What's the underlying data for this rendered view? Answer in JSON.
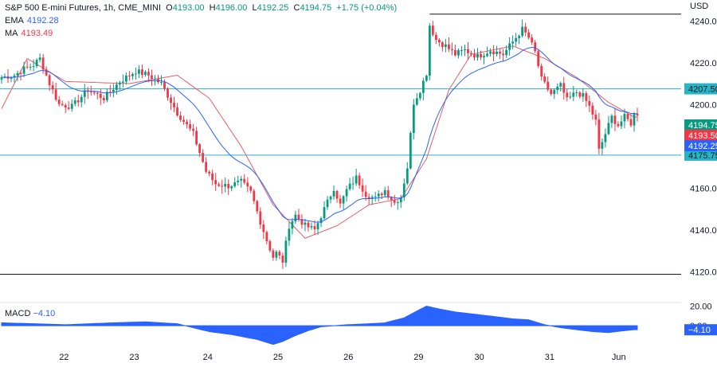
{
  "header": {
    "title": "S&P 500 E-mini Futures, 1h, CME_MINI",
    "open_label": "O",
    "open": "4193.00",
    "high_label": "H",
    "high": "4196.00",
    "low_label": "L",
    "low": "4192.25",
    "close_label": "C",
    "close": "4194.75",
    "change": "+1.75 (+0.04%)",
    "ema_label": "EMA",
    "ema_value": "4192.28",
    "ma_label": "MA",
    "ma_value": "4193.49",
    "currency": "USD"
  },
  "macd_legend": {
    "label": "MACD",
    "value": "−4.10"
  },
  "colors": {
    "up": "#089981",
    "down": "#f23645",
    "ema": "#2962ff",
    "ma": "#e0606a",
    "level_cyan": "#26b5c6",
    "level_black": "#131722",
    "macd": "#2962ff"
  },
  "chart_data": [
    {
      "type": "candlestick",
      "title": "S&P 500 E-mini Futures, 1h, CME_MINI",
      "x_tick_labels": [
        "22",
        "23",
        "24",
        "25",
        "26",
        "29",
        "30",
        "31",
        "Jun"
      ],
      "y_ticks": [
        4120,
        4140,
        4160,
        4180,
        4200,
        4220,
        4240
      ],
      "y_tick_labels": [
        "4120.00",
        "4140.00",
        "4160.00",
        "4180.00",
        "4200.00",
        "4220.00",
        "4240.00"
      ],
      "ylim": [
        4106,
        4250
      ],
      "horizontal_levels": [
        {
          "value": 4207.5,
          "label": "4207.50",
          "color": "cyan"
        },
        {
          "value": 4175.75,
          "label": "4175.75",
          "color": "cyan"
        },
        {
          "value": 4243.25,
          "label": "",
          "color": "black"
        },
        {
          "value": 4118.75,
          "label": "",
          "color": "black"
        }
      ],
      "price_tags": [
        {
          "label": "4194.75",
          "value": 4194.75,
          "color": "#089981"
        },
        {
          "label": "4193.50",
          "value": 4193.5,
          "color": "#f23645"
        },
        {
          "label": "4192.25",
          "value": 4192.25,
          "color": "#2962ff"
        }
      ],
      "close_anchors": [
        [
          0,
          4213
        ],
        [
          4,
          4214
        ],
        [
          7,
          4217
        ],
        [
          10,
          4219
        ],
        [
          12,
          4222
        ],
        [
          15,
          4210
        ],
        [
          18,
          4200
        ],
        [
          22,
          4199
        ],
        [
          27,
          4207
        ],
        [
          32,
          4203
        ],
        [
          37,
          4211
        ],
        [
          42,
          4216
        ],
        [
          46,
          4214
        ],
        [
          50,
          4210
        ],
        [
          55,
          4196
        ],
        [
          60,
          4186
        ],
        [
          64,
          4168
        ],
        [
          67,
          4162
        ],
        [
          71,
          4161
        ],
        [
          75,
          4163
        ],
        [
          78,
          4158
        ],
        [
          81,
          4144
        ],
        [
          83,
          4135
        ],
        [
          85,
          4127
        ],
        [
          86,
          4129
        ],
        [
          88,
          4125
        ],
        [
          90,
          4142
        ],
        [
          92,
          4147
        ],
        [
          95,
          4142
        ],
        [
          98,
          4140
        ],
        [
          101,
          4150
        ],
        [
          104,
          4160
        ],
        [
          106,
          4152
        ],
        [
          108,
          4159
        ],
        [
          111,
          4165
        ],
        [
          114,
          4157
        ],
        [
          117,
          4155
        ],
        [
          120,
          4159
        ],
        [
          123,
          4153
        ],
        [
          125,
          4156
        ],
        [
          127,
          4170
        ],
        [
          129,
          4201
        ],
        [
          131,
          4207
        ],
        [
          133,
          4215
        ],
        [
          134,
          4238
        ],
        [
          136,
          4231
        ],
        [
          139,
          4228
        ],
        [
          142,
          4224
        ],
        [
          145,
          4226
        ],
        [
          149,
          4223
        ],
        [
          153,
          4226
        ],
        [
          157,
          4224
        ],
        [
          160,
          4230
        ],
        [
          163,
          4236
        ],
        [
          165,
          4232
        ],
        [
          167,
          4225
        ],
        [
          169,
          4212
        ],
        [
          172,
          4205
        ],
        [
          175,
          4209
        ],
        [
          177,
          4202
        ],
        [
          180,
          4206
        ],
        [
          182,
          4204
        ],
        [
          184,
          4199
        ],
        [
          186,
          4192
        ],
        [
          187,
          4178
        ],
        [
          189,
          4186
        ],
        [
          191,
          4194
        ],
        [
          193,
          4190
        ],
        [
          195,
          4194
        ],
        [
          197,
          4191
        ],
        [
          198,
          4195
        ]
      ],
      "ma_points": [
        [
          0,
          4198
        ],
        [
          8,
          4222
        ],
        [
          20,
          4211
        ],
        [
          40,
          4210
        ],
        [
          55,
          4214
        ],
        [
          65,
          4203
        ],
        [
          75,
          4180
        ],
        [
          85,
          4152
        ],
        [
          95,
          4136
        ],
        [
          105,
          4142
        ],
        [
          115,
          4152
        ],
        [
          125,
          4155
        ],
        [
          133,
          4174
        ],
        [
          140,
          4207
        ],
        [
          147,
          4224
        ],
        [
          160,
          4228
        ],
        [
          170,
          4222
        ],
        [
          180,
          4213
        ],
        [
          190,
          4201
        ],
        [
          198,
          4194
        ]
      ],
      "macd": {
        "label": "MACD",
        "current": -4.1,
        "y_ticks": [
          20,
          0
        ],
        "y_tick_labels": [
          "20.00",
          "0.00"
        ],
        "current_label": "−4.10",
        "ylim": [
          -25,
          22
        ],
        "points": [
          [
            0,
            3
          ],
          [
            10,
            2
          ],
          [
            20,
            1
          ],
          [
            35,
            3
          ],
          [
            45,
            4
          ],
          [
            55,
            2
          ],
          [
            60,
            -2
          ],
          [
            65,
            -6
          ],
          [
            72,
            -9
          ],
          [
            80,
            -14
          ],
          [
            85,
            -19
          ],
          [
            88,
            -16
          ],
          [
            92,
            -10
          ],
          [
            96,
            -5
          ],
          [
            100,
            -1
          ],
          [
            108,
            1
          ],
          [
            115,
            2
          ],
          [
            120,
            3
          ],
          [
            126,
            8
          ],
          [
            130,
            15
          ],
          [
            133,
            20
          ],
          [
            137,
            17
          ],
          [
            142,
            14
          ],
          [
            150,
            11
          ],
          [
            160,
            7
          ],
          [
            165,
            6
          ],
          [
            170,
            1
          ],
          [
            175,
            -2
          ],
          [
            185,
            -6
          ],
          [
            190,
            -7
          ],
          [
            195,
            -5
          ],
          [
            198,
            -4
          ]
        ]
      }
    }
  ]
}
